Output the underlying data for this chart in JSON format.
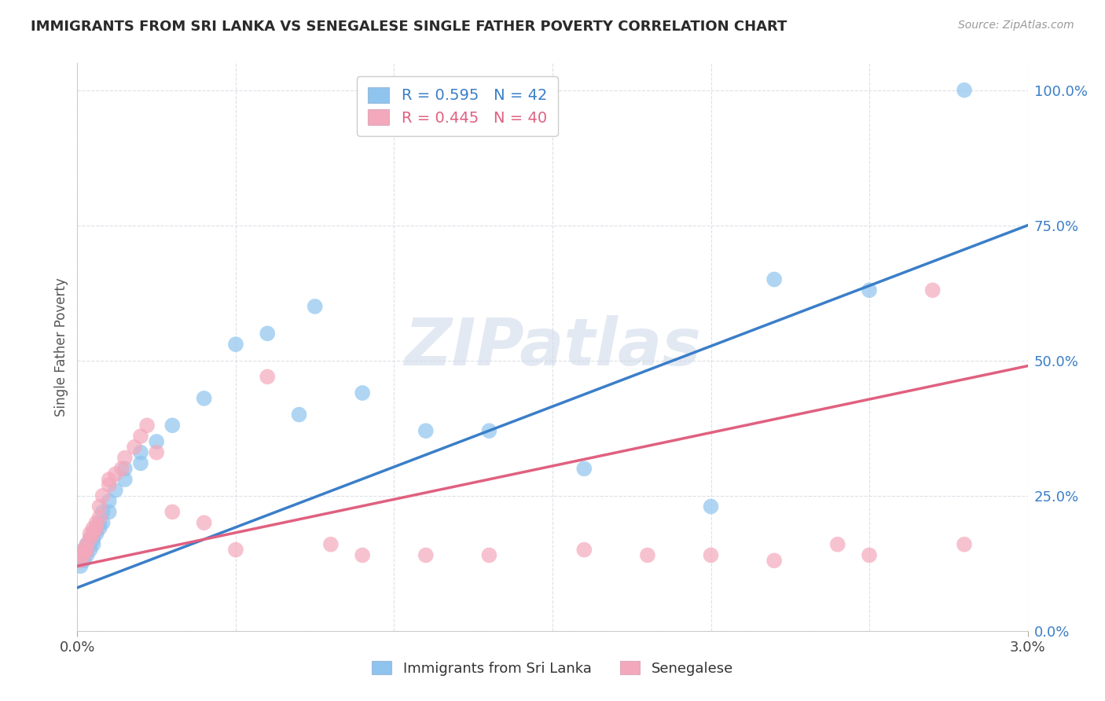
{
  "title": "IMMIGRANTS FROM SRI LANKA VS SENEGALESE SINGLE FATHER POVERTY CORRELATION CHART",
  "source": "Source: ZipAtlas.com",
  "ylabel": "Single Father Poverty",
  "legend_blue_r": "R = 0.595",
  "legend_blue_n": "N = 42",
  "legend_pink_r": "R = 0.445",
  "legend_pink_n": "N = 40",
  "legend_label_blue": "Immigrants from Sri Lanka",
  "legend_label_pink": "Senegalese",
  "watermark": "ZIPatlas",
  "blue_color": "#8EC4EE",
  "pink_color": "#F4A8BB",
  "blue_line_color": "#3A7EC8",
  "pink_line_color": "#E06080",
  "background_color": "#ffffff",
  "grid_color": "#dde0e8",
  "xlim": [
    0.0,
    0.03
  ],
  "ylim": [
    0.0,
    1.05
  ],
  "ytick_values": [
    0.0,
    0.25,
    0.5,
    0.75,
    1.0
  ],
  "xtick_values": [
    0.0,
    0.005,
    0.01,
    0.015,
    0.02,
    0.025,
    0.03
  ],
  "blue_line_x0": 0.0,
  "blue_line_y0": 0.08,
  "blue_line_x1": 0.03,
  "blue_line_y1": 0.75,
  "pink_line_x0": 0.0,
  "pink_line_y0": 0.12,
  "pink_line_x1": 0.03,
  "pink_line_y1": 0.49,
  "blue_x": [
    0.0001,
    0.0001,
    0.0002,
    0.0002,
    0.0002,
    0.0003,
    0.0003,
    0.0003,
    0.0004,
    0.0004,
    0.0004,
    0.0005,
    0.0005,
    0.0005,
    0.0006,
    0.0006,
    0.0007,
    0.0007,
    0.0008,
    0.0008,
    0.001,
    0.001,
    0.0012,
    0.0015,
    0.0015,
    0.002,
    0.002,
    0.0025,
    0.003,
    0.004,
    0.005,
    0.006,
    0.007,
    0.0075,
    0.009,
    0.011,
    0.013,
    0.016,
    0.02,
    0.022,
    0.025,
    0.028
  ],
  "blue_y": [
    0.12,
    0.13,
    0.13,
    0.14,
    0.15,
    0.14,
    0.15,
    0.16,
    0.15,
    0.16,
    0.17,
    0.16,
    0.17,
    0.18,
    0.18,
    0.19,
    0.19,
    0.2,
    0.2,
    0.22,
    0.22,
    0.24,
    0.26,
    0.28,
    0.3,
    0.31,
    0.33,
    0.35,
    0.38,
    0.43,
    0.53,
    0.55,
    0.4,
    0.6,
    0.44,
    0.37,
    0.37,
    0.3,
    0.23,
    0.65,
    0.63,
    1.0
  ],
  "pink_x": [
    0.0001,
    0.0001,
    0.0002,
    0.0002,
    0.0003,
    0.0003,
    0.0004,
    0.0004,
    0.0005,
    0.0005,
    0.0006,
    0.0006,
    0.0007,
    0.0007,
    0.0008,
    0.001,
    0.001,
    0.0012,
    0.0014,
    0.0015,
    0.0018,
    0.002,
    0.0022,
    0.0025,
    0.003,
    0.004,
    0.005,
    0.006,
    0.008,
    0.009,
    0.011,
    0.013,
    0.016,
    0.018,
    0.02,
    0.022,
    0.024,
    0.025,
    0.027,
    0.028
  ],
  "pink_y": [
    0.13,
    0.14,
    0.14,
    0.15,
    0.15,
    0.16,
    0.17,
    0.18,
    0.18,
    0.19,
    0.19,
    0.2,
    0.21,
    0.23,
    0.25,
    0.27,
    0.28,
    0.29,
    0.3,
    0.32,
    0.34,
    0.36,
    0.38,
    0.33,
    0.22,
    0.2,
    0.15,
    0.47,
    0.16,
    0.14,
    0.14,
    0.14,
    0.15,
    0.14,
    0.14,
    0.13,
    0.16,
    0.14,
    0.63,
    0.16
  ]
}
